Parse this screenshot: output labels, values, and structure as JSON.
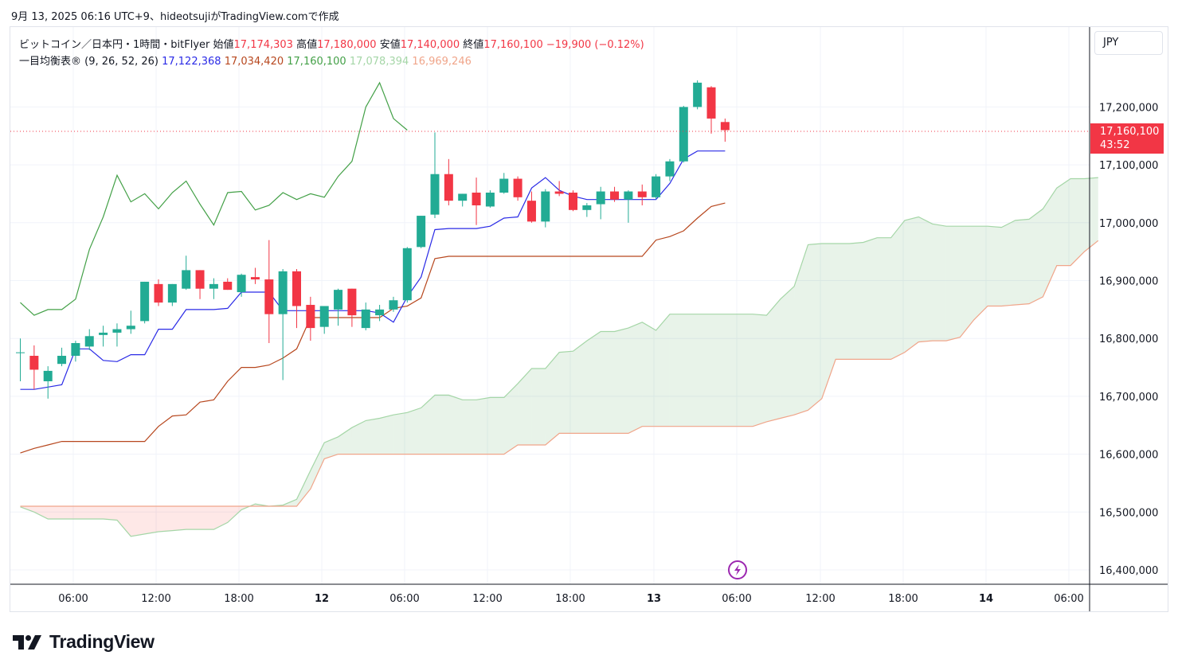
{
  "snapshot": {
    "text": "9月 13, 2025 06:16 UTC+9、hideotsujiがTradingView.comで作成"
  },
  "legend": {
    "symbol": "ビットコイン／日本円・1時間・bitFlyer",
    "open_label": "始値",
    "open": "17,174,303",
    "high_label": "高値",
    "high": "17,180,000",
    "low_label": "安値",
    "low": "17,140,000",
    "close_label": "終値",
    "close": "17,160,100",
    "change": "−19,900 (−0.12%)",
    "indicator": "一目均衡表® (9, 26, 52, 26)",
    "tenkan": "17,122,368",
    "kijun": "17,034,420",
    "chikou": "17,160,100",
    "span_a": "17,078,394",
    "span_b": "16,969,246"
  },
  "currency": "JPY",
  "price_tag": {
    "price": "17,160,100",
    "countdown": "43:52"
  },
  "brand": {
    "name": "TradingView"
  },
  "colors": {
    "up": "#22ab94",
    "down": "#f23645",
    "tenkan": "#2a2ae6",
    "kijun": "#b7471e",
    "chikou": "#43a047",
    "span_a": "#a5d6a7",
    "span_b": "#f0a58a"
  },
  "chart_data": {
    "type": "candlestick",
    "yticks": [
      "16,400,000",
      "16,500,000",
      "16,600,000",
      "16,700,000",
      "16,800,000",
      "16,900,000",
      "17,000,000",
      "17,100,000",
      "17,200,000"
    ],
    "xticks": [
      "06:00",
      "12:00",
      "18:00",
      "12",
      "06:00",
      "12:00",
      "18:00",
      "13",
      "06:00",
      "12:00",
      "18:00",
      "14",
      "06:00"
    ],
    "candles": [
      {
        "o": 16776000,
        "h": 16800000,
        "l": 16726000,
        "c": 16776000
      },
      {
        "o": 16770000,
        "h": 16788000,
        "l": 16712000,
        "c": 16746000
      },
      {
        "o": 16726000,
        "h": 16752000,
        "l": 16696000,
        "c": 16744000
      },
      {
        "o": 16756000,
        "h": 16784000,
        "l": 16752000,
        "c": 16770000
      },
      {
        "o": 16770000,
        "h": 16796000,
        "l": 16760000,
        "c": 16792000
      },
      {
        "o": 16786000,
        "h": 16816000,
        "l": 16780000,
        "c": 16804000
      },
      {
        "o": 16806000,
        "h": 16822000,
        "l": 16786000,
        "c": 16810000
      },
      {
        "o": 16810000,
        "h": 16826000,
        "l": 16786000,
        "c": 16816000
      },
      {
        "o": 16816000,
        "h": 16848000,
        "l": 16808000,
        "c": 16822000
      },
      {
        "o": 16830000,
        "h": 16898000,
        "l": 16826000,
        "c": 16898000
      },
      {
        "o": 16894000,
        "h": 16902000,
        "l": 16856000,
        "c": 16862000
      },
      {
        "o": 16862000,
        "h": 16894000,
        "l": 16856000,
        "c": 16894000
      },
      {
        "o": 16886000,
        "h": 16943000,
        "l": 16884000,
        "c": 16918000
      },
      {
        "o": 16918000,
        "h": 16918000,
        "l": 16868000,
        "c": 16886000
      },
      {
        "o": 16886000,
        "h": 16904000,
        "l": 16868000,
        "c": 16894000
      },
      {
        "o": 16898000,
        "h": 16904000,
        "l": 16884000,
        "c": 16884000
      },
      {
        "o": 16880000,
        "h": 16912000,
        "l": 16872000,
        "c": 16910000
      },
      {
        "o": 16906000,
        "h": 16922000,
        "l": 16894000,
        "c": 16902000
      },
      {
        "o": 16902000,
        "h": 16970000,
        "l": 16792000,
        "c": 16842000
      },
      {
        "o": 16842000,
        "h": 16920000,
        "l": 16728000,
        "c": 16916000
      },
      {
        "o": 16916000,
        "h": 16920000,
        "l": 16818000,
        "c": 16856000
      },
      {
        "o": 16858000,
        "h": 16872000,
        "l": 16796000,
        "c": 16818000
      },
      {
        "o": 16820000,
        "h": 16856000,
        "l": 16808000,
        "c": 16856000
      },
      {
        "o": 16850000,
        "h": 16886000,
        "l": 16822000,
        "c": 16884000
      },
      {
        "o": 16886000,
        "h": 16886000,
        "l": 16820000,
        "c": 16840000
      },
      {
        "o": 16818000,
        "h": 16862000,
        "l": 16814000,
        "c": 16850000
      },
      {
        "o": 16840000,
        "h": 16858000,
        "l": 16830000,
        "c": 16850000
      },
      {
        "o": 16850000,
        "h": 16872000,
        "l": 16846000,
        "c": 16866000
      },
      {
        "o": 16866000,
        "h": 16958000,
        "l": 16862000,
        "c": 16956000
      },
      {
        "o": 16958000,
        "h": 17012000,
        "l": 16956000,
        "c": 17012000
      },
      {
        "o": 17014000,
        "h": 17156000,
        "l": 17008000,
        "c": 17084000
      },
      {
        "o": 17084000,
        "h": 17110000,
        "l": 17030000,
        "c": 17038000
      },
      {
        "o": 17038000,
        "h": 17050000,
        "l": 17028000,
        "c": 17050000
      },
      {
        "o": 17052000,
        "h": 17078000,
        "l": 16996000,
        "c": 17030000
      },
      {
        "o": 17028000,
        "h": 17056000,
        "l": 17026000,
        "c": 17052000
      },
      {
        "o": 17052000,
        "h": 17086000,
        "l": 17050000,
        "c": 17076000
      },
      {
        "o": 17076000,
        "h": 17080000,
        "l": 17038000,
        "c": 17044000
      },
      {
        "o": 17038000,
        "h": 17054000,
        "l": 17000000,
        "c": 17002000
      },
      {
        "o": 17002000,
        "h": 17058000,
        "l": 16992000,
        "c": 17054000
      },
      {
        "o": 17054000,
        "h": 17072000,
        "l": 17046000,
        "c": 17050000
      },
      {
        "o": 17052000,
        "h": 17056000,
        "l": 17020000,
        "c": 17022000
      },
      {
        "o": 17022000,
        "h": 17034000,
        "l": 17010000,
        "c": 17030000
      },
      {
        "o": 17032000,
        "h": 17062000,
        "l": 17006000,
        "c": 17054000
      },
      {
        "o": 17054000,
        "h": 17062000,
        "l": 17036000,
        "c": 17040000
      },
      {
        "o": 17040000,
        "h": 17056000,
        "l": 17000000,
        "c": 17054000
      },
      {
        "o": 17054000,
        "h": 17066000,
        "l": 17030000,
        "c": 17044000
      },
      {
        "o": 17044000,
        "h": 17084000,
        "l": 17040000,
        "c": 17080000
      },
      {
        "o": 17080000,
        "h": 17110000,
        "l": 17072000,
        "c": 17106000
      },
      {
        "o": 17106000,
        "h": 17202000,
        "l": 17104000,
        "c": 17200000
      },
      {
        "o": 17200000,
        "h": 17246000,
        "l": 17196000,
        "c": 17242000
      },
      {
        "o": 17234000,
        "h": 17236000,
        "l": 17154000,
        "c": 17180000
      },
      {
        "o": 17174000,
        "h": 17180000,
        "l": 17140000,
        "c": 17160000
      }
    ],
    "tenkan": [
      16712000,
      16712000,
      16716000,
      16720000,
      16782000,
      16782000,
      16762000,
      16760000,
      16772000,
      16772000,
      16816000,
      16816000,
      16850000,
      16850000,
      16850000,
      16852000,
      16880000,
      16880000,
      16880000,
      16848000,
      16848000,
      16848000,
      16848000,
      16848000,
      16848000,
      16848000,
      16844000,
      16828000,
      16872000,
      16906000,
      16988000,
      16990000,
      16990000,
      16990000,
      16994000,
      17008000,
      17010000,
      17060000,
      17078000,
      17056000,
      17046000,
      17040000,
      17040000,
      17040000,
      17040000,
      17040000,
      17040000,
      17068000,
      17110000,
      17124000,
      17124000,
      17124000
    ],
    "kijun": [
      16602000,
      16610000,
      16616000,
      16622000,
      16622000,
      16622000,
      16622000,
      16622000,
      16622000,
      16622000,
      16648000,
      16666000,
      16668000,
      16690000,
      16694000,
      16726000,
      16750000,
      16750000,
      16754000,
      16766000,
      16782000,
      16836000,
      16836000,
      16836000,
      16836000,
      16836000,
      16836000,
      16852000,
      16856000,
      16870000,
      16938000,
      16942000,
      16942000,
      16942000,
      16942000,
      16942000,
      16942000,
      16942000,
      16942000,
      16942000,
      16942000,
      16942000,
      16942000,
      16942000,
      16942000,
      16942000,
      16970000,
      16976000,
      16986000,
      17008000,
      17028000,
      17034000
    ],
    "chikou": [
      16862000,
      16840000,
      16850000,
      16850000,
      16868000,
      16954000,
      17010000,
      17082000,
      17036000,
      17050000,
      17024000,
      17052000,
      17072000,
      17032000,
      16996000,
      17052000,
      17054000,
      17022000,
      17030000,
      17052000,
      17040000,
      17050000,
      17044000,
      17080000,
      17106000,
      17200000,
      17242000,
      17180000,
      17160000
    ],
    "span_a": [
      16509000,
      16500000,
      16488000,
      16488000,
      16488000,
      16488000,
      16488000,
      16486000,
      16458000,
      16462000,
      16466000,
      16468000,
      16470000,
      16470000,
      16470000,
      16482000,
      16504000,
      16514000,
      16510000,
      16512000,
      16522000,
      16572000,
      16620000,
      16630000,
      16646000,
      16658000,
      16662000,
      16668000,
      16672000,
      16680000,
      16702000,
      16702000,
      16694000,
      16694000,
      16698000,
      16698000,
      16722000,
      16748000,
      16748000,
      16776000,
      16778000,
      16796000,
      16812000,
      16812000,
      16818000,
      16828000,
      16814000,
      16842000,
      16842000,
      16842000,
      16842000,
      16842000,
      16842000,
      16842000,
      16840000,
      16868000,
      16890000,
      16962000,
      16964000,
      16964000,
      16964000,
      16966000,
      16974000,
      16974000,
      17004000,
      17010000,
      16998000,
      16994000,
      16994000,
      16994000,
      16994000,
      16992000,
      17004000,
      17006000,
      17024000,
      17060000,
      17076000,
      17076000,
      17078000
    ],
    "span_b": [
      16510000,
      16510000,
      16510000,
      16510000,
      16510000,
      16510000,
      16510000,
      16510000,
      16510000,
      16510000,
      16510000,
      16510000,
      16510000,
      16510000,
      16510000,
      16510000,
      16510000,
      16510000,
      16510000,
      16510000,
      16510000,
      16540000,
      16592000,
      16600000,
      16600000,
      16600000,
      16600000,
      16600000,
      16600000,
      16600000,
      16600000,
      16600000,
      16600000,
      16600000,
      16600000,
      16600000,
      16616000,
      16616000,
      16616000,
      16636000,
      16636000,
      16636000,
      16636000,
      16636000,
      16636000,
      16648000,
      16648000,
      16648000,
      16648000,
      16648000,
      16648000,
      16648000,
      16648000,
      16648000,
      16656000,
      16662000,
      16668000,
      16676000,
      16696000,
      16764000,
      16764000,
      16764000,
      16764000,
      16764000,
      16776000,
      16794000,
      16796000,
      16796000,
      16802000,
      16832000,
      16856000,
      16856000,
      16858000,
      16860000,
      16872000,
      16926000,
      16926000,
      16950000,
      16969000
    ]
  }
}
